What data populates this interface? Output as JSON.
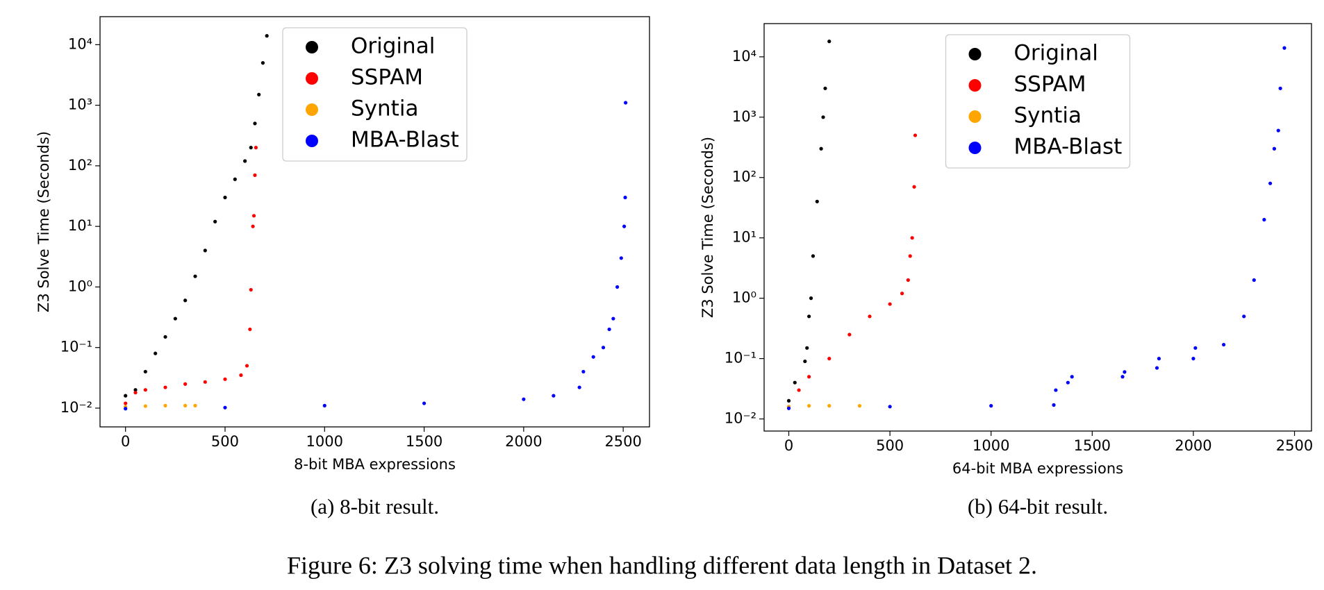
{
  "chart_data": [
    {
      "type": "scatter",
      "caption": "(a) 8-bit result.",
      "xlabel": "8-bit MBA expressions",
      "ylabel": "Z3 Solve Time (Seconds)",
      "xlim": [
        -128,
        2632
      ],
      "ylim": [
        0.0049,
        29000
      ],
      "yscale": "log",
      "legend": "upper center",
      "xticks": [
        0,
        500,
        1000,
        1500,
        2000,
        2500
      ],
      "yticks": [
        {
          "value": 0.01,
          "label": "10⁻²"
        },
        {
          "value": 0.1,
          "label": "10⁻¹"
        },
        {
          "value": 1,
          "label": "10⁰"
        },
        {
          "value": 10,
          "label": "10¹"
        },
        {
          "value": 100,
          "label": "10²"
        },
        {
          "value": 1000,
          "label": "10³"
        },
        {
          "value": 10000,
          "label": "10⁴"
        }
      ],
      "series": [
        {
          "name": "Original",
          "color": "#000000",
          "x": [
            0,
            50,
            100,
            150,
            200,
            250,
            300,
            350,
            400,
            450,
            500,
            550,
            600,
            630,
            650,
            670,
            690,
            710
          ],
          "values": [
            0.016,
            0.02,
            0.04,
            0.08,
            0.15,
            0.3,
            0.6,
            1.5,
            4,
            12,
            30,
            60,
            120,
            200,
            500,
            1500,
            5000,
            14000
          ]
        },
        {
          "name": "SSPAM",
          "color": "#ff0000",
          "x": [
            0,
            50,
            100,
            200,
            300,
            400,
            500,
            580,
            610,
            625,
            630,
            640,
            645,
            650,
            655
          ],
          "values": [
            0.012,
            0.018,
            0.02,
            0.022,
            0.025,
            0.027,
            0.03,
            0.035,
            0.05,
            0.2,
            0.9,
            10,
            15,
            70,
            200
          ]
        },
        {
          "name": "Syntia",
          "color": "#ffa500",
          "x": [
            0,
            100,
            200,
            300,
            350
          ],
          "values": [
            0.0105,
            0.0108,
            0.011,
            0.011,
            0.011
          ]
        },
        {
          "name": "MBA-Blast",
          "color": "#0000ff",
          "x": [
            0,
            500,
            1000,
            1500,
            2000,
            2150,
            2280,
            2300,
            2350,
            2400,
            2430,
            2450,
            2470,
            2490,
            2505,
            2510,
            2512
          ],
          "values": [
            0.0098,
            0.0102,
            0.011,
            0.012,
            0.014,
            0.016,
            0.022,
            0.04,
            0.07,
            0.1,
            0.2,
            0.3,
            1,
            3,
            10,
            30,
            1100
          ]
        }
      ]
    },
    {
      "type": "scatter",
      "caption": "(b) 64-bit result.",
      "xlabel": "64-bit MBA expressions",
      "ylabel": "Z3 Solve Time (Seconds)",
      "xlim": [
        -122,
        2584
      ],
      "ylim": [
        0.0063,
        35500
      ],
      "yscale": "log",
      "legend": "upper center",
      "xticks": [
        0,
        500,
        1000,
        1500,
        2000,
        2500
      ],
      "yticks": [
        {
          "value": 0.01,
          "label": "10⁻²"
        },
        {
          "value": 0.1,
          "label": "10⁻¹"
        },
        {
          "value": 1,
          "label": "10⁰"
        },
        {
          "value": 10,
          "label": "10¹"
        },
        {
          "value": 100,
          "label": "10²"
        },
        {
          "value": 1000,
          "label": "10³"
        },
        {
          "value": 10000,
          "label": "10⁴"
        }
      ],
      "series": [
        {
          "name": "Original",
          "color": "#000000",
          "x": [
            0,
            30,
            80,
            90,
            100,
            110,
            120,
            140,
            160,
            170,
            180,
            200
          ],
          "values": [
            0.02,
            0.04,
            0.09,
            0.15,
            0.5,
            1,
            5,
            40,
            300,
            1000,
            3000,
            18000
          ]
        },
        {
          "name": "SSPAM",
          "color": "#ff0000",
          "x": [
            0,
            50,
            100,
            200,
            300,
            400,
            500,
            560,
            590,
            600,
            610,
            620,
            625
          ],
          "values": [
            0.016,
            0.03,
            0.05,
            0.1,
            0.25,
            0.5,
            0.8,
            1.2,
            2,
            5,
            10,
            70,
            500
          ]
        },
        {
          "name": "Syntia",
          "color": "#ffa500",
          "x": [
            0,
            100,
            200,
            350
          ],
          "values": [
            0.016,
            0.0165,
            0.0165,
            0.0165
          ]
        },
        {
          "name": "MBA-Blast",
          "color": "#0000ff",
          "x": [
            0,
            500,
            1000,
            1310,
            1320,
            1380,
            1400,
            1650,
            1660,
            1820,
            1830,
            2000,
            2010,
            2150,
            2250,
            2300,
            2350,
            2380,
            2400,
            2420,
            2430,
            2450
          ],
          "values": [
            0.015,
            0.016,
            0.0165,
            0.017,
            0.03,
            0.04,
            0.05,
            0.05,
            0.06,
            0.07,
            0.1,
            0.1,
            0.15,
            0.17,
            0.5,
            2,
            20,
            80,
            300,
            600,
            3000,
            14000
          ]
        }
      ]
    }
  ],
  "figure_caption": "Figure 6: Z3 solving time when handling different data length in Dataset 2."
}
